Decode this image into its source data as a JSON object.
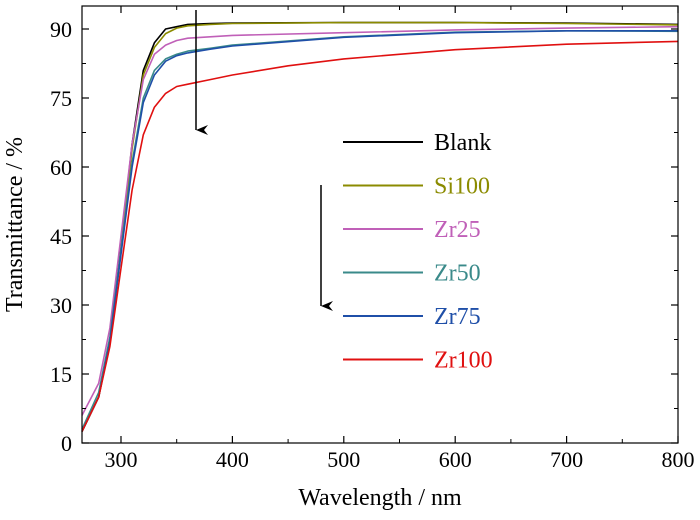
{
  "chart_data": {
    "type": "line",
    "xlabel": "Wavelength / nm",
    "ylabel": "Transmittance / %",
    "xlim": [
      265,
      800
    ],
    "ylim": [
      0,
      95
    ],
    "xticks": [
      300,
      400,
      500,
      600,
      700,
      800
    ],
    "yticks": [
      0,
      15,
      30,
      45,
      60,
      75,
      90
    ],
    "grid": false,
    "legend_position": "center-right",
    "series": [
      {
        "name": "Blank",
        "color": "#000000",
        "x": [
          265,
          280,
          290,
          300,
          310,
          320,
          330,
          340,
          350,
          360,
          380,
          400,
          500,
          600,
          700,
          800
        ],
        "y": [
          2.5,
          10,
          22,
          43,
          65,
          81,
          87,
          90,
          90.5,
          91,
          91.2,
          91.3,
          91.4,
          91.4,
          91.3,
          91
        ]
      },
      {
        "name": "Si100",
        "color": "#8b8b00",
        "x": [
          265,
          280,
          290,
          300,
          310,
          320,
          330,
          340,
          350,
          360,
          380,
          400,
          500,
          600,
          700,
          800
        ],
        "y": [
          2.5,
          10,
          22,
          42,
          64,
          80,
          86,
          89,
          90.2,
          90.7,
          91,
          91.2,
          91.4,
          91.4,
          91.2,
          90.9
        ]
      },
      {
        "name": "Zr25",
        "color": "#c060b8",
        "x": [
          265,
          280,
          290,
          300,
          310,
          320,
          330,
          340,
          350,
          360,
          380,
          400,
          500,
          600,
          700,
          800
        ],
        "y": [
          6,
          13,
          25,
          45,
          65,
          79,
          84.5,
          86.5,
          87.5,
          88,
          88.3,
          88.6,
          89.2,
          89.8,
          90.2,
          90.5
        ]
      },
      {
        "name": "Zr50",
        "color": "#3a8a8a",
        "x": [
          265,
          280,
          290,
          300,
          310,
          320,
          330,
          340,
          350,
          360,
          380,
          400,
          500,
          600,
          700,
          800
        ],
        "y": [
          3,
          11,
          23,
          42,
          61,
          75,
          81,
          83.5,
          84.5,
          85.2,
          85.8,
          86.5,
          88.3,
          89.3,
          89.6,
          89.5
        ]
      },
      {
        "name": "Zr75",
        "color": "#1f4fa8",
        "x": [
          265,
          280,
          290,
          300,
          310,
          320,
          330,
          340,
          350,
          360,
          380,
          400,
          500,
          600,
          700,
          800
        ],
        "y": [
          2.5,
          10,
          22,
          41,
          60,
          74,
          80,
          83,
          84.2,
          84.8,
          85.6,
          86.3,
          88.2,
          89.2,
          89.6,
          89.6
        ]
      },
      {
        "name": "Zr100",
        "color": "#e01010",
        "x": [
          265,
          280,
          290,
          300,
          310,
          320,
          330,
          340,
          350,
          360,
          380,
          400,
          450,
          500,
          600,
          700,
          800
        ],
        "y": [
          2.5,
          10,
          21,
          38,
          55,
          67,
          73,
          76,
          77.5,
          78,
          79,
          80,
          82,
          83.5,
          85.5,
          86.7,
          87.3
        ]
      }
    ]
  }
}
